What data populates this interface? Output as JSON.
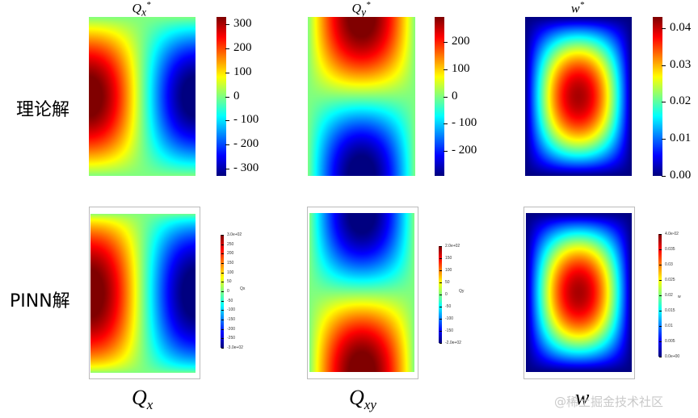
{
  "row_labels": {
    "theory": "理论解",
    "pinn": "PINN解"
  },
  "watermark": "@稀土掘金技术社区",
  "colors": {
    "jet_low": "#00008f",
    "jet_mid": "#7fff7f",
    "jet_high": "#800000"
  },
  "chart_data": [
    {
      "type": "heatmap",
      "row": "理论解",
      "title_base": "Q",
      "title_sub": "x",
      "title_sup": "*",
      "field": "Qx",
      "colormap": "jet",
      "colorbar_ticks": [
        "300",
        "200",
        "100",
        "0",
        "- 100",
        "- 200",
        "- 300"
      ],
      "colorbar_tick_values": [
        300,
        200,
        100,
        0,
        -100,
        -200,
        -300
      ],
      "range": [
        -330,
        330
      ]
    },
    {
      "type": "heatmap",
      "row": "理论解",
      "title_base": "Q",
      "title_sub": "y",
      "title_sup": "*",
      "field": "Qy",
      "colormap": "jet",
      "colorbar_ticks": [
        "200",
        "100",
        "0",
        "- 100",
        "- 200"
      ],
      "colorbar_tick_values": [
        200,
        100,
        0,
        -100,
        -200
      ],
      "range": [
        -290,
        290
      ]
    },
    {
      "type": "heatmap",
      "row": "理论解",
      "title_base": "w",
      "title_sub": "",
      "title_sup": "*",
      "field": "w",
      "colormap": "jet",
      "colorbar_ticks": [
        "0.04",
        "0.03",
        "0.02",
        "0.01",
        "0.00"
      ],
      "colorbar_tick_values": [
        0.04,
        0.03,
        0.02,
        0.01,
        0.0
      ],
      "range": [
        0,
        0.043
      ]
    },
    {
      "type": "heatmap",
      "row": "PINN解",
      "field": "Qx",
      "colormap": "jet",
      "colorbar_ticks": [
        "3.0e+02",
        "250",
        "200",
        "150",
        "100",
        "50",
        "0",
        "-50",
        "-100",
        "-150",
        "-200",
        "-250",
        "-3.0e+02"
      ],
      "colorbar_tick_values": [
        300,
        250,
        200,
        150,
        100,
        50,
        0,
        -50,
        -100,
        -150,
        -200,
        -250,
        -300
      ],
      "range": [
        -300,
        300
      ],
      "colorbar_label": "Qx"
    },
    {
      "type": "heatmap",
      "row": "PINN解",
      "field": "Qxy",
      "colormap": "jet",
      "colorbar_ticks": [
        "2.0e+02",
        "150",
        "100",
        "50",
        "0",
        "-50",
        "-100",
        "-150",
        "-2.0e+02"
      ],
      "colorbar_tick_values": [
        200,
        150,
        100,
        50,
        0,
        -50,
        -100,
        -150,
        -200
      ],
      "range": [
        -200,
        200
      ],
      "colorbar_label": "Qy"
    },
    {
      "type": "heatmap",
      "row": "PINN解",
      "field": "w",
      "colormap": "jet",
      "colorbar_ticks": [
        "4.0e-02",
        "0.035",
        "0.03",
        "0.025",
        "0.02",
        "0.015",
        "0.01",
        "0.005",
        "0.0e+00"
      ],
      "colorbar_tick_values": [
        0.04,
        0.035,
        0.03,
        0.025,
        0.02,
        0.015,
        0.01,
        0.005,
        0.0
      ],
      "range": [
        0,
        0.04
      ],
      "colorbar_label": "w"
    }
  ],
  "bottom_labels": [
    {
      "base": "Q",
      "sub": "x"
    },
    {
      "base": "Q",
      "sub": "xy"
    },
    {
      "base": "w",
      "sub": ""
    }
  ]
}
